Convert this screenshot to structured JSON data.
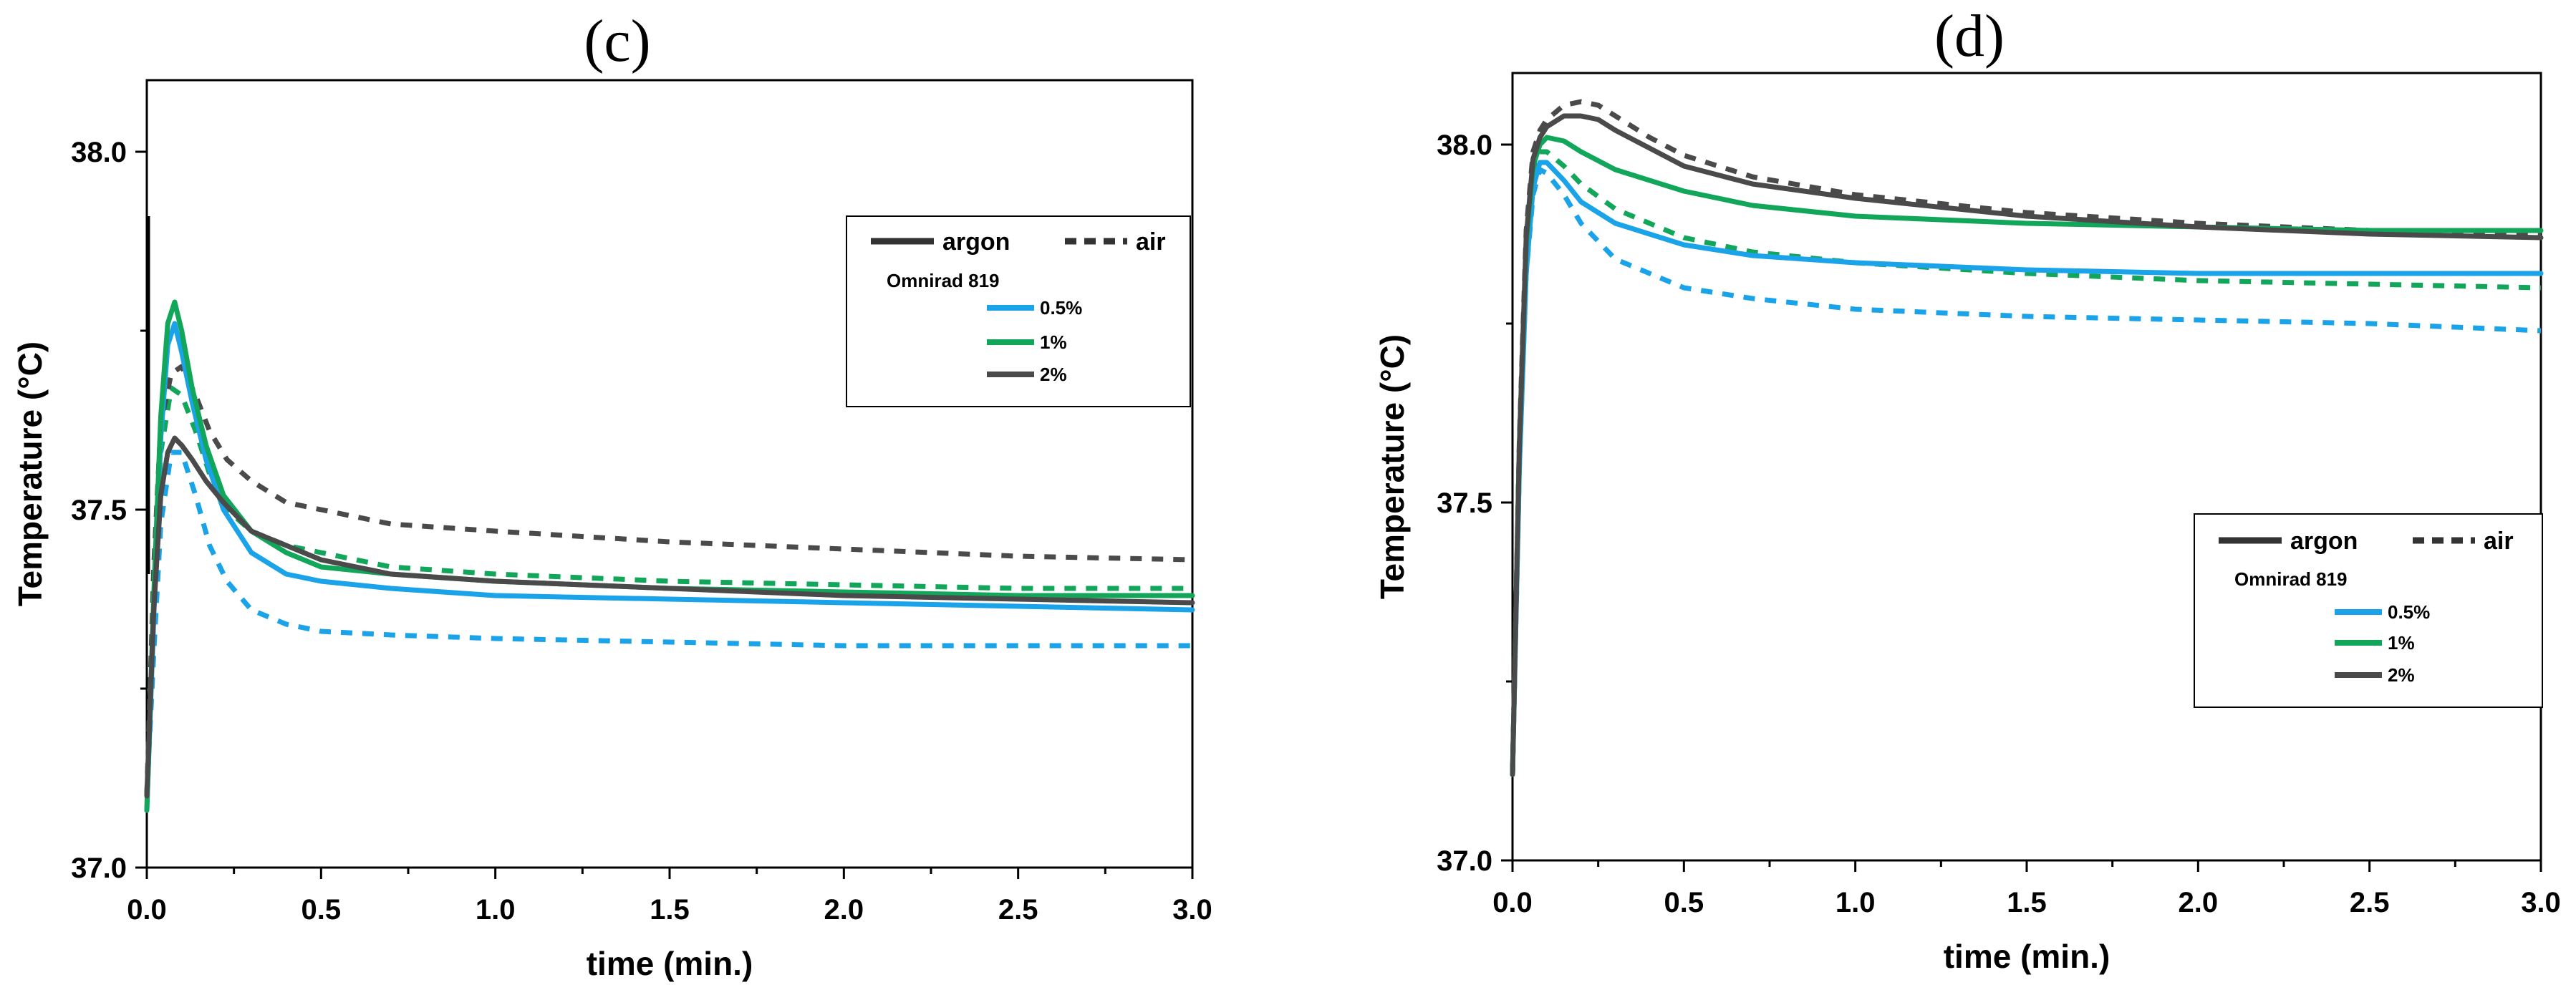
{
  "chart_data": [
    {
      "type": "line",
      "panel_label": "(c)",
      "title": "",
      "xlabel": "time (min.)",
      "ylabel": "Temperature (°C)",
      "xlim": [
        0.0,
        3.0
      ],
      "ylim": [
        37.0,
        38.1
      ],
      "x_ticks": [
        "0.0",
        "0.5",
        "1.0",
        "1.5",
        "2.0",
        "2.5",
        "3.0"
      ],
      "y_ticks": [
        "37.0",
        "37.5",
        "38.0"
      ],
      "legend": {
        "placement": "top-right",
        "argon_label": "argon",
        "air_label": "air",
        "group_title": "Omnirad 819",
        "items": [
          "0.5%",
          "1%",
          "2%"
        ]
      },
      "annotation_line": {
        "x": 0.0,
        "y_from": 37.41,
        "y_to": 37.91
      },
      "series": [
        {
          "name": "0.5% argon",
          "concentration": "0.5%",
          "atmosphere": "argon",
          "color": "#1aa3e8",
          "x": [
            0.0,
            0.02,
            0.04,
            0.06,
            0.08,
            0.1,
            0.13,
            0.17,
            0.22,
            0.3,
            0.4,
            0.5,
            0.7,
            1.0,
            1.5,
            2.0,
            2.5,
            3.0
          ],
          "values": [
            37.08,
            37.35,
            37.6,
            37.73,
            37.76,
            37.72,
            37.65,
            37.57,
            37.5,
            37.44,
            37.41,
            37.4,
            37.39,
            37.38,
            37.375,
            37.37,
            37.365,
            37.36
          ]
        },
        {
          "name": "1% argon",
          "concentration": "1%",
          "atmosphere": "argon",
          "color": "#11a65a",
          "x": [
            0.0,
            0.02,
            0.04,
            0.06,
            0.08,
            0.1,
            0.13,
            0.17,
            0.22,
            0.3,
            0.4,
            0.5,
            0.7,
            1.0,
            1.5,
            2.0,
            2.5,
            3.0
          ],
          "values": [
            37.08,
            37.38,
            37.63,
            37.76,
            37.79,
            37.75,
            37.67,
            37.59,
            37.52,
            37.47,
            37.44,
            37.42,
            37.41,
            37.4,
            37.39,
            37.385,
            37.38,
            37.38
          ]
        },
        {
          "name": "2% argon",
          "concentration": "2%",
          "atmosphere": "argon",
          "color": "#4a4a4a",
          "x": [
            0.0,
            0.02,
            0.04,
            0.06,
            0.08,
            0.1,
            0.13,
            0.17,
            0.22,
            0.3,
            0.4,
            0.5,
            0.7,
            1.0,
            1.5,
            2.0,
            2.5,
            3.0
          ],
          "values": [
            37.1,
            37.36,
            37.52,
            37.58,
            37.6,
            37.59,
            37.57,
            37.54,
            37.51,
            37.47,
            37.45,
            37.43,
            37.41,
            37.4,
            37.39,
            37.38,
            37.375,
            37.37
          ]
        },
        {
          "name": "0.5% air",
          "concentration": "0.5%",
          "atmosphere": "air",
          "color": "#1aa3e8",
          "x": [
            0.0,
            0.02,
            0.04,
            0.07,
            0.1,
            0.14,
            0.18,
            0.23,
            0.3,
            0.4,
            0.5,
            0.7,
            1.0,
            1.5,
            2.0,
            2.5,
            3.0
          ],
          "values": [
            37.1,
            37.3,
            37.48,
            37.58,
            37.58,
            37.52,
            37.45,
            37.4,
            37.36,
            37.34,
            37.33,
            37.325,
            37.32,
            37.315,
            37.31,
            37.31,
            37.31
          ]
        },
        {
          "name": "1% air",
          "concentration": "1%",
          "atmosphere": "air",
          "color": "#11a65a",
          "x": [
            0.0,
            0.02,
            0.04,
            0.07,
            0.1,
            0.14,
            0.18,
            0.23,
            0.3,
            0.4,
            0.5,
            0.7,
            1.0,
            1.5,
            2.0,
            2.5,
            3.0
          ],
          "values": [
            37.1,
            37.38,
            37.58,
            37.67,
            37.66,
            37.61,
            37.55,
            37.5,
            37.47,
            37.45,
            37.44,
            37.42,
            37.41,
            37.4,
            37.395,
            37.39,
            37.39
          ]
        },
        {
          "name": "2% air",
          "concentration": "2%",
          "atmosphere": "air",
          "color": "#4a4a4a",
          "x": [
            0.0,
            0.02,
            0.04,
            0.07,
            0.1,
            0.14,
            0.18,
            0.23,
            0.3,
            0.4,
            0.5,
            0.7,
            1.0,
            1.5,
            2.0,
            2.5,
            3.0
          ],
          "values": [
            37.1,
            37.42,
            37.62,
            37.69,
            37.7,
            37.66,
            37.61,
            37.57,
            37.54,
            37.51,
            37.5,
            37.48,
            37.47,
            37.455,
            37.445,
            37.435,
            37.43
          ]
        }
      ]
    },
    {
      "type": "line",
      "panel_label": "(d)",
      "title": "",
      "xlabel": "time (min.)",
      "ylabel": "Temperature (°C)",
      "xlim": [
        0.0,
        3.0
      ],
      "ylim": [
        37.0,
        38.1
      ],
      "x_ticks": [
        "0.0",
        "0.5",
        "1.0",
        "1.5",
        "2.0",
        "2.5",
        "3.0"
      ],
      "y_ticks": [
        "37.0",
        "37.5",
        "38.0"
      ],
      "legend": {
        "placement": "center-right",
        "argon_label": "argon",
        "air_label": "air",
        "group_title": "Omnirad 819",
        "items": [
          "0.5%",
          "1%",
          "2%"
        ]
      },
      "series": [
        {
          "name": "0.5% argon",
          "concentration": "0.5%",
          "atmosphere": "argon",
          "color": "#1aa3e8",
          "x": [
            0.0,
            0.02,
            0.04,
            0.06,
            0.08,
            0.1,
            0.15,
            0.2,
            0.3,
            0.5,
            0.7,
            1.0,
            1.5,
            2.0,
            2.5,
            3.0
          ],
          "values": [
            37.12,
            37.55,
            37.82,
            37.94,
            37.975,
            37.975,
            37.95,
            37.92,
            37.89,
            37.86,
            37.845,
            37.835,
            37.825,
            37.82,
            37.82,
            37.82
          ]
        },
        {
          "name": "1% argon",
          "concentration": "1%",
          "atmosphere": "argon",
          "color": "#11a65a",
          "x": [
            0.0,
            0.02,
            0.04,
            0.06,
            0.08,
            0.1,
            0.15,
            0.2,
            0.3,
            0.5,
            0.7,
            1.0,
            1.5,
            2.0,
            2.5,
            3.0
          ],
          "values": [
            37.12,
            37.58,
            37.86,
            37.97,
            38.0,
            38.01,
            38.005,
            37.99,
            37.965,
            37.935,
            37.915,
            37.9,
            37.89,
            37.885,
            37.88,
            37.88
          ]
        },
        {
          "name": "2% argon",
          "concentration": "2%",
          "atmosphere": "argon",
          "color": "#4a4a4a",
          "x": [
            0.0,
            0.02,
            0.04,
            0.06,
            0.08,
            0.1,
            0.15,
            0.2,
            0.25,
            0.3,
            0.4,
            0.5,
            0.7,
            1.0,
            1.5,
            2.0,
            2.5,
            3.0
          ],
          "values": [
            37.12,
            37.58,
            37.87,
            37.98,
            38.01,
            38.025,
            38.04,
            38.04,
            38.035,
            38.02,
            37.995,
            37.97,
            37.945,
            37.925,
            37.9,
            37.885,
            37.875,
            37.87
          ]
        },
        {
          "name": "0.5% air",
          "concentration": "0.5%",
          "atmosphere": "air",
          "color": "#1aa3e8",
          "x": [
            0.0,
            0.02,
            0.04,
            0.06,
            0.08,
            0.1,
            0.15,
            0.2,
            0.3,
            0.5,
            0.7,
            1.0,
            1.5,
            2.0,
            2.5,
            3.0
          ],
          "values": [
            37.12,
            37.55,
            37.82,
            37.93,
            37.965,
            37.96,
            37.93,
            37.89,
            37.84,
            37.8,
            37.785,
            37.77,
            37.76,
            37.755,
            37.75,
            37.74
          ]
        },
        {
          "name": "1% air",
          "concentration": "1%",
          "atmosphere": "air",
          "color": "#11a65a",
          "x": [
            0.0,
            0.02,
            0.04,
            0.06,
            0.08,
            0.1,
            0.15,
            0.2,
            0.3,
            0.5,
            0.7,
            1.0,
            1.5,
            2.0,
            2.5,
            3.0
          ],
          "values": [
            37.12,
            37.57,
            37.85,
            37.96,
            37.99,
            37.99,
            37.97,
            37.945,
            37.91,
            37.87,
            37.85,
            37.835,
            37.82,
            37.81,
            37.805,
            37.8
          ]
        },
        {
          "name": "2% air",
          "concentration": "2%",
          "atmosphere": "air",
          "color": "#4a4a4a",
          "x": [
            0.0,
            0.02,
            0.04,
            0.06,
            0.08,
            0.1,
            0.15,
            0.2,
            0.25,
            0.3,
            0.4,
            0.5,
            0.7,
            1.0,
            1.5,
            2.0,
            2.5,
            3.0
          ],
          "values": [
            37.12,
            37.59,
            37.88,
            37.99,
            38.02,
            38.035,
            38.055,
            38.06,
            38.055,
            38.04,
            38.01,
            37.985,
            37.955,
            37.93,
            37.905,
            37.89,
            37.88,
            37.875
          ]
        }
      ]
    }
  ]
}
